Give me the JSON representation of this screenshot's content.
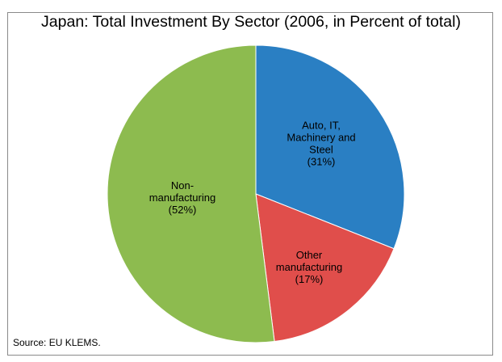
{
  "chart_data": {
    "type": "pie",
    "title": "Japan: Total Investment By Sector (2006, in Percent of total)",
    "source": "Source: EU KLEMS.",
    "slices": [
      {
        "label_lines": [
          "Auto, IT,",
          "Machinery and",
          "Steel",
          "(31%)"
        ],
        "value": 31,
        "color": "#2a7fc3"
      },
      {
        "label_lines": [
          "Other",
          "manufacturing",
          "(17%)"
        ],
        "value": 17,
        "color": "#e04e4b"
      },
      {
        "label_lines": [
          "Non-",
          "manufacturing",
          "(52%)"
        ],
        "value": 52,
        "color": "#8dbb4f"
      }
    ]
  }
}
